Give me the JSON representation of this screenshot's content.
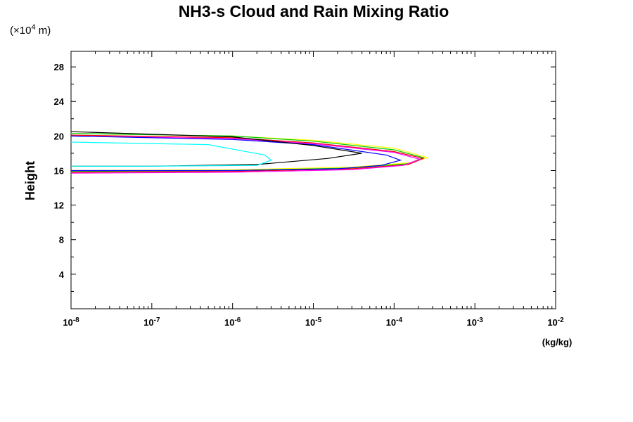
{
  "chart_data": {
    "type": "line",
    "title": "NH3-s Cloud and Rain Mixing Ratio",
    "yunit": {
      "prefix": "(×10",
      "exp": "4",
      "suffix": " m)"
    },
    "ylabel": "Height",
    "xunit": "(kg/kg)",
    "xscale": "log",
    "xlim": [
      1e-08,
      0.01
    ],
    "ylim": [
      0,
      29.8
    ],
    "xticks": [
      {
        "base": "10",
        "exp": "-8",
        "value": 1e-08
      },
      {
        "base": "10",
        "exp": "-7",
        "value": 1e-07
      },
      {
        "base": "10",
        "exp": "-6",
        "value": 1e-06
      },
      {
        "base": "10",
        "exp": "-5",
        "value": 1e-05
      },
      {
        "base": "10",
        "exp": "-4",
        "value": 0.0001
      },
      {
        "base": "10",
        "exp": "-3",
        "value": 0.001
      },
      {
        "base": "10",
        "exp": "-2",
        "value": 0.01
      }
    ],
    "yticks": [
      "4",
      "8",
      "12",
      "16",
      "20",
      "24",
      "28"
    ],
    "grid": false,
    "series": [
      {
        "color": "#ffff00",
        "points": [
          [
            1e-08,
            20.3
          ],
          [
            1e-06,
            20.0
          ],
          [
            1e-05,
            19.5
          ],
          [
            0.0001,
            18.6
          ],
          [
            0.00026,
            17.5
          ],
          [
            0.00016,
            16.9
          ],
          [
            3e-05,
            16.4
          ],
          [
            1e-06,
            16.1
          ],
          [
            1e-08,
            16.0
          ]
        ]
      },
      {
        "color": "#00cc00",
        "points": [
          [
            1e-08,
            20.3
          ],
          [
            1e-06,
            20.0
          ],
          [
            1e-05,
            19.4
          ],
          [
            0.0001,
            18.4
          ],
          [
            0.00023,
            17.5
          ],
          [
            0.00015,
            16.8
          ],
          [
            3e-05,
            16.3
          ],
          [
            1e-06,
            16.0
          ],
          [
            1e-08,
            15.9
          ]
        ]
      },
      {
        "color": "#ff0000",
        "points": [
          [
            1e-08,
            20.1
          ],
          [
            1e-06,
            19.8
          ],
          [
            1e-05,
            19.2
          ],
          [
            0.0001,
            18.2
          ],
          [
            0.00023,
            17.4
          ],
          [
            0.00015,
            16.7
          ],
          [
            3e-05,
            16.2
          ],
          [
            1e-06,
            15.9
          ],
          [
            1e-08,
            15.8
          ]
        ]
      },
      {
        "color": "#ff00ff",
        "points": [
          [
            1e-08,
            20.0
          ],
          [
            1e-06,
            19.7
          ],
          [
            1e-05,
            19.1
          ],
          [
            0.0001,
            18.1
          ],
          [
            0.00021,
            17.3
          ],
          [
            0.00013,
            16.6
          ],
          [
            3e-05,
            16.1
          ],
          [
            1e-06,
            15.8
          ],
          [
            1e-08,
            15.7
          ]
        ]
      },
      {
        "color": "#0000ff",
        "points": [
          [
            1e-08,
            20.0
          ],
          [
            1e-06,
            19.6
          ],
          [
            1e-05,
            19.0
          ],
          [
            8e-05,
            17.8
          ],
          [
            0.00012,
            17.2
          ],
          [
            7e-05,
            16.6
          ],
          [
            2e-05,
            16.2
          ],
          [
            1e-06,
            16.0
          ],
          [
            1e-08,
            16.0
          ]
        ]
      },
      {
        "color": "#000000",
        "points": [
          [
            1e-08,
            20.5
          ],
          [
            1e-06,
            19.9
          ],
          [
            1e-05,
            18.9
          ],
          [
            4e-05,
            18.0
          ],
          [
            1.5e-05,
            17.4
          ],
          [
            2e-06,
            16.7
          ],
          [
            1e-07,
            16.5
          ],
          [
            1e-08,
            16.5
          ]
        ]
      },
      {
        "color": "#00ffff",
        "points": [
          [
            1e-08,
            19.3
          ],
          [
            5e-07,
            19.0
          ],
          [
            2.5e-06,
            17.8
          ],
          [
            3e-06,
            17.2
          ],
          [
            2e-06,
            16.6
          ],
          [
            1e-07,
            16.5
          ],
          [
            1e-08,
            16.5
          ]
        ]
      }
    ]
  }
}
